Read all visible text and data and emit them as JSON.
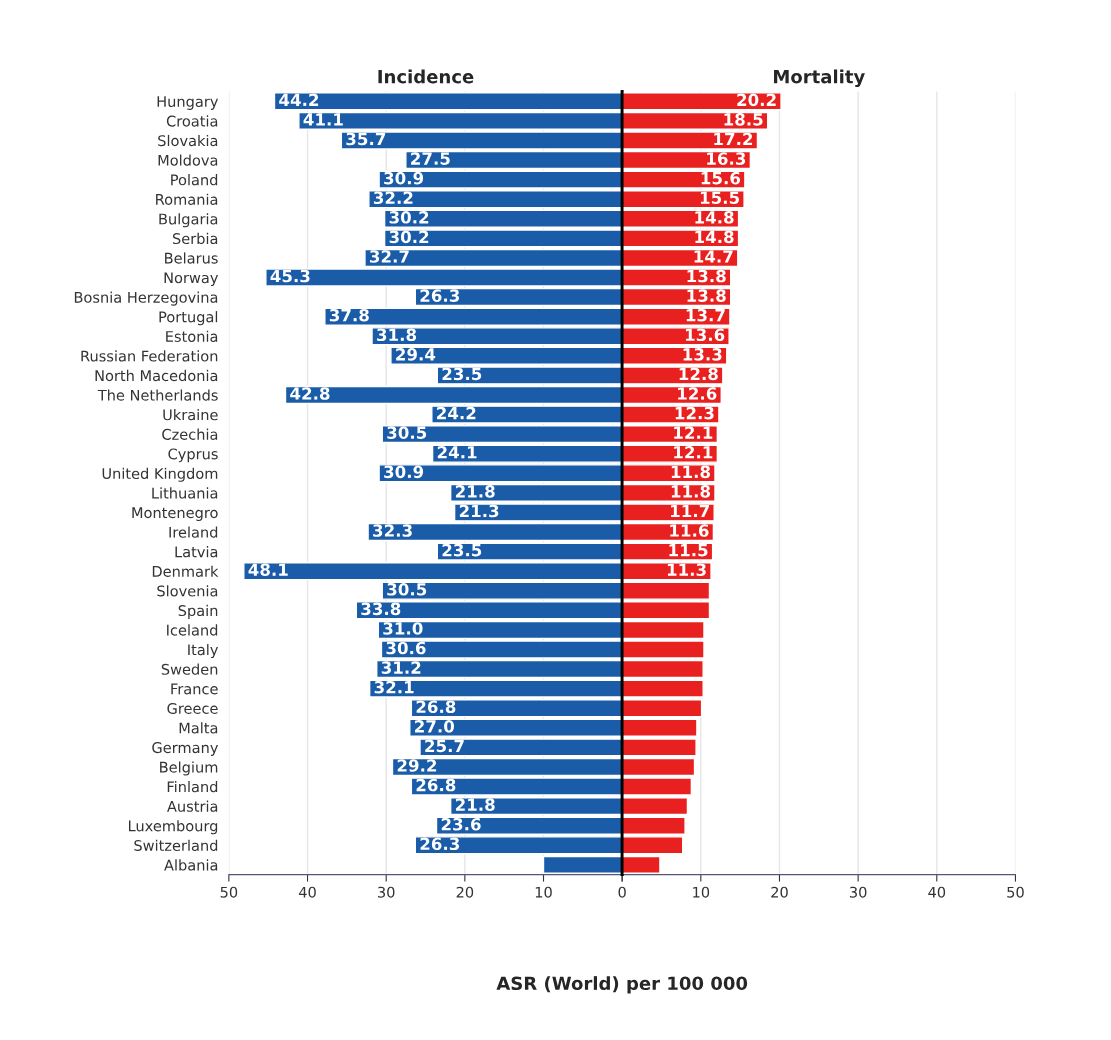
{
  "chart_data": [
    {
      "type": "bar",
      "orientation": "horizontal",
      "title": "Incidence",
      "xlabel": "ASR (World) per 100 000",
      "grid": "x",
      "color": "#1a5ca8",
      "categories": [
        "Hungary",
        "Croatia",
        "Slovakia",
        "Moldova",
        "Poland",
        "Romania",
        "Bulgaria",
        "Serbia",
        "Belarus",
        "Norway",
        "Bosnia Herzegovina",
        "Portugal",
        "Estonia",
        "Russian Federation",
        "North Macedonia",
        "The Netherlands",
        "Ukraine",
        "Czechia",
        "Cyprus",
        "United Kingdom",
        "Lithuania",
        "Montenegro",
        "Ireland",
        "Latvia",
        "Denmark",
        "Slovenia",
        "Spain",
        "Iceland",
        "Italy",
        "Sweden",
        "France",
        "Greece",
        "Malta",
        "Germany",
        "Belgium",
        "Finland",
        "Austria",
        "Luxembourg",
        "Switzerland",
        "Albania"
      ],
      "values": [
        44.2,
        41.1,
        35.7,
        27.5,
        30.9,
        32.2,
        30.2,
        30.2,
        32.7,
        45.3,
        26.3,
        37.8,
        31.8,
        29.4,
        23.5,
        42.8,
        24.2,
        30.5,
        24.1,
        30.9,
        21.8,
        21.3,
        32.3,
        23.5,
        48.1,
        30.5,
        33.8,
        31.0,
        30.6,
        31.2,
        32.1,
        26.8,
        27.0,
        25.7,
        29.2,
        26.8,
        21.8,
        23.6,
        26.3,
        10.0
      ],
      "value_labels": [
        "44.2",
        "41.1",
        "35.7",
        "27.5",
        "30.9",
        "32.2",
        "30.2",
        "30.2",
        "32.7",
        "45.3",
        "26.3",
        "37.8",
        "31.8",
        "29.4",
        "23.5",
        "42.8",
        "24.2",
        "30.5",
        "24.1",
        "30.9",
        "21.8",
        "21.3",
        "32.3",
        "23.5",
        "48.1",
        "30.5",
        "33.8",
        "31.0",
        "30.6",
        "31.2",
        "32.1",
        "26.8",
        "27.0",
        "25.7",
        "29.2",
        "26.8",
        "21.8",
        "23.6",
        "26.3",
        null
      ],
      "xlim": [
        50,
        0
      ],
      "xticks": [
        50,
        40,
        30,
        20,
        10,
        {
          "value": 0,
          "label": null
        }
      ]
    },
    {
      "type": "bar",
      "orientation": "horizontal",
      "title": "Mortality",
      "grid": "x",
      "color": "#e8201f",
      "tick_labels": "x",
      "categories": [
        null,
        null,
        null,
        null,
        null,
        null,
        null,
        null,
        null,
        null,
        null,
        null,
        null,
        null,
        null,
        null,
        null,
        null,
        null,
        null,
        null,
        null,
        null,
        null,
        null,
        null,
        null,
        null,
        null,
        null,
        null,
        null,
        null,
        null,
        null,
        null,
        null,
        null,
        null,
        null
      ],
      "values": [
        20.2,
        18.5,
        17.2,
        16.3,
        15.6,
        15.5,
        14.8,
        14.8,
        14.7,
        13.8,
        13.8,
        13.7,
        13.6,
        13.3,
        12.8,
        12.6,
        12.3,
        12.1,
        12.1,
        11.8,
        11.8,
        11.7,
        11.6,
        11.5,
        11.3,
        11.1,
        11.1,
        10.4,
        10.4,
        10.3,
        10.3,
        10.1,
        9.5,
        9.4,
        9.2,
        8.8,
        8.3,
        8.0,
        7.7,
        4.8
      ],
      "value_labels": [
        "20.2",
        "18.5",
        "17.2",
        "16.3",
        "15.6",
        "15.5",
        "14.8",
        "14.8",
        "14.7",
        "13.8",
        "13.8",
        "13.7",
        "13.6",
        "13.3",
        "12.8",
        "12.6",
        "12.3",
        "12.1",
        "12.1",
        "11.8",
        "11.8",
        "11.7",
        "11.6",
        "11.5",
        "11.3",
        null,
        null,
        null,
        null,
        null,
        null,
        null,
        null,
        null,
        null,
        null,
        null,
        null,
        null,
        null
      ],
      "xlim": [
        0,
        50
      ],
      "xticks": [
        0,
        10,
        20,
        30,
        40,
        50
      ]
    }
  ]
}
